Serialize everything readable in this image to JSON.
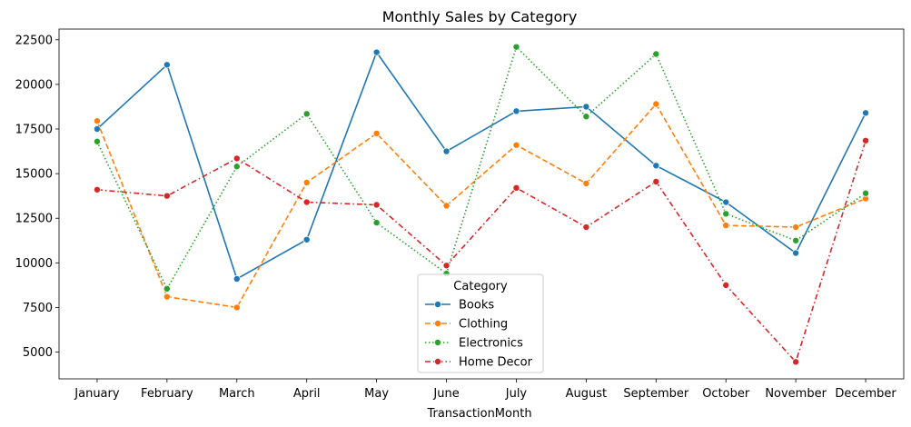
{
  "chart_data": {
    "type": "line",
    "title": "Monthly Sales by Category",
    "xlabel": "TransactionMonth",
    "ylabel": "",
    "categories": [
      "January",
      "February",
      "March",
      "April",
      "May",
      "June",
      "July",
      "August",
      "September",
      "October",
      "November",
      "December"
    ],
    "yticks": [
      5000,
      7500,
      10000,
      12500,
      15000,
      17500,
      20000,
      22500
    ],
    "ylim": [
      3500,
      23100
    ],
    "grid": false,
    "legend": {
      "title": "Category",
      "placement": "lower-center"
    },
    "series": [
      {
        "name": "Books",
        "color": "#1f77b4",
        "dash": "solid",
        "values": [
          17500,
          21100,
          9100,
          11300,
          21800,
          16250,
          18500,
          18750,
          15450,
          13400,
          10550,
          18400
        ]
      },
      {
        "name": "Clothing",
        "color": "#ff7f0e",
        "dash": "dashed",
        "values": [
          17950,
          8100,
          7500,
          14500,
          17250,
          13200,
          16600,
          14450,
          18900,
          12100,
          12000,
          13600
        ]
      },
      {
        "name": "Electronics",
        "color": "#2ca02c",
        "dash": "dotted",
        "values": [
          16800,
          8550,
          15400,
          18350,
          12250,
          9400,
          22100,
          18200,
          21700,
          12750,
          11250,
          13900
        ]
      },
      {
        "name": "Home Decor",
        "color": "#d62728",
        "dash": "dashdot",
        "values": [
          14100,
          13750,
          15850,
          13400,
          13250,
          9850,
          14200,
          12000,
          14550,
          8750,
          4450,
          16850
        ]
      }
    ]
  }
}
